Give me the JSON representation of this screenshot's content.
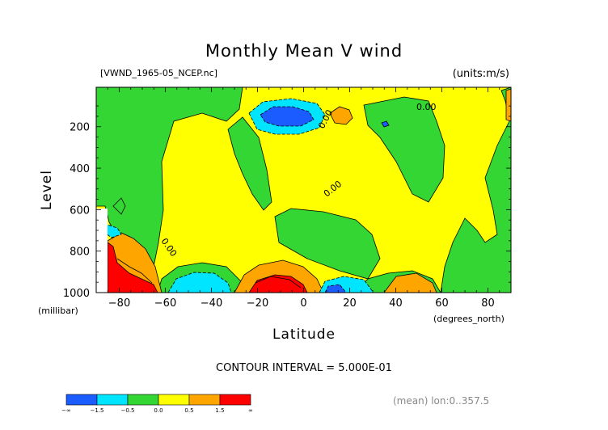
{
  "chart_data": {
    "type": "heatmap",
    "title": "Monthly Mean V wind",
    "subtitle_left": "[VWND_1965-05_NCEP.nc]",
    "subtitle_right": "(units:m/s)",
    "xlabel": "Latitude",
    "x_units": "(degrees_north)",
    "ylabel": "Level",
    "y_units": "(millibar)",
    "xlim": [
      -90,
      90
    ],
    "ylim": [
      1000,
      10
    ],
    "x_ticks": [
      -80,
      -60,
      -40,
      -20,
      0,
      20,
      40,
      60,
      80
    ],
    "y_ticks": [
      200,
      400,
      600,
      800,
      1000
    ],
    "contour_interval_text": "CONTOUR INTERVAL = 5.000E-01",
    "contour_labels": [
      "0.00",
      "0.00",
      "0.00",
      "0.00"
    ],
    "footer": "(mean) lon:0..357.5",
    "colorbar": {
      "colors": [
        "#1a5cff",
        "#00e5ff",
        "#33d633",
        "#ffff00",
        "#ffa500",
        "#ff0000"
      ],
      "labels": [
        "-∞",
        "-1.5",
        "-0.5",
        "0.0",
        "0.5",
        "1.5",
        "∞"
      ]
    }
  }
}
